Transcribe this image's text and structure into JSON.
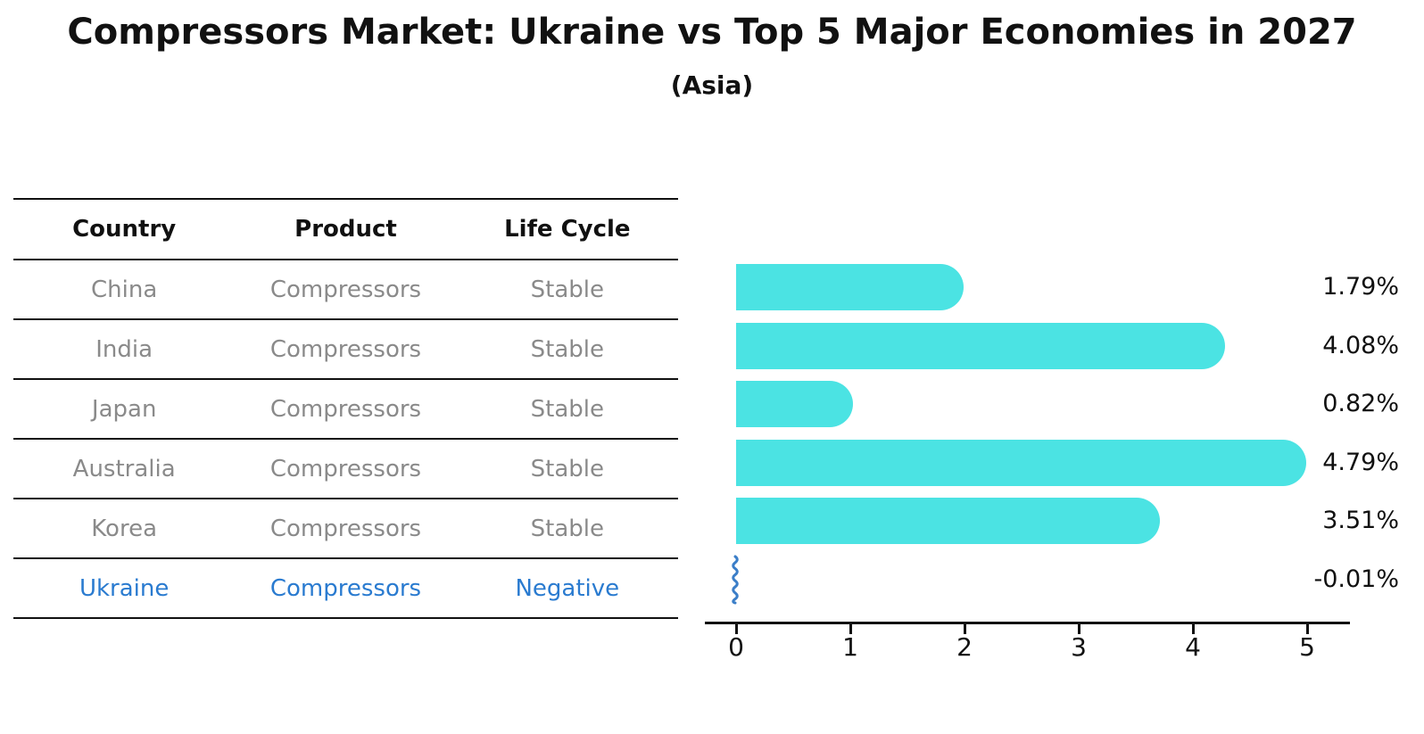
{
  "title": "Compressors Market: Ukraine vs Top 5 Major Economies in 2027",
  "subtitle": "(Asia)",
  "table": {
    "headers": [
      "Country",
      "Product",
      "Life Cycle"
    ],
    "rows": [
      {
        "country": "China",
        "product": "Compressors",
        "life_cycle": "Stable",
        "highlight": false
      },
      {
        "country": "India",
        "product": "Compressors",
        "life_cycle": "Stable",
        "highlight": false
      },
      {
        "country": "Japan",
        "product": "Compressors",
        "life_cycle": "Stable",
        "highlight": false
      },
      {
        "country": "Australia",
        "product": "Compressors",
        "life_cycle": "Stable",
        "highlight": false
      },
      {
        "country": "Korea",
        "product": "Compressors",
        "life_cycle": "Stable",
        "highlight": false
      },
      {
        "country": "Ukraine",
        "product": "Compressors",
        "life_cycle": "Negative",
        "highlight": true
      }
    ]
  },
  "chart_data": {
    "type": "bar",
    "orientation": "horizontal",
    "title": "Compressors Market: Ukraine vs Top 5 Major Economies in 2027",
    "subtitle": "(Asia)",
    "categories": [
      "China",
      "India",
      "Japan",
      "Australia",
      "Korea",
      "Ukraine"
    ],
    "values": [
      1.79,
      4.08,
      0.82,
      4.79,
      3.51,
      -0.01
    ],
    "value_labels": [
      "1.79%",
      "4.08%",
      "0.82%",
      "4.79%",
      "3.51%",
      "-0.01%"
    ],
    "xlim": [
      0,
      5
    ],
    "x_ticks": [
      "0",
      "1",
      "2",
      "3",
      "4",
      "5"
    ],
    "grid": false,
    "legend": "none",
    "bar_color": "#4BE3E3",
    "highlight_color": "#2a7bd0",
    "negative_marker": "blue-squiggle"
  },
  "colors": {
    "bar": "#4BE3E3",
    "highlight_text": "#2a7bd0",
    "squiggle": "#3b7ec8",
    "muted_text": "#8a8a8a",
    "text": "#111111"
  }
}
